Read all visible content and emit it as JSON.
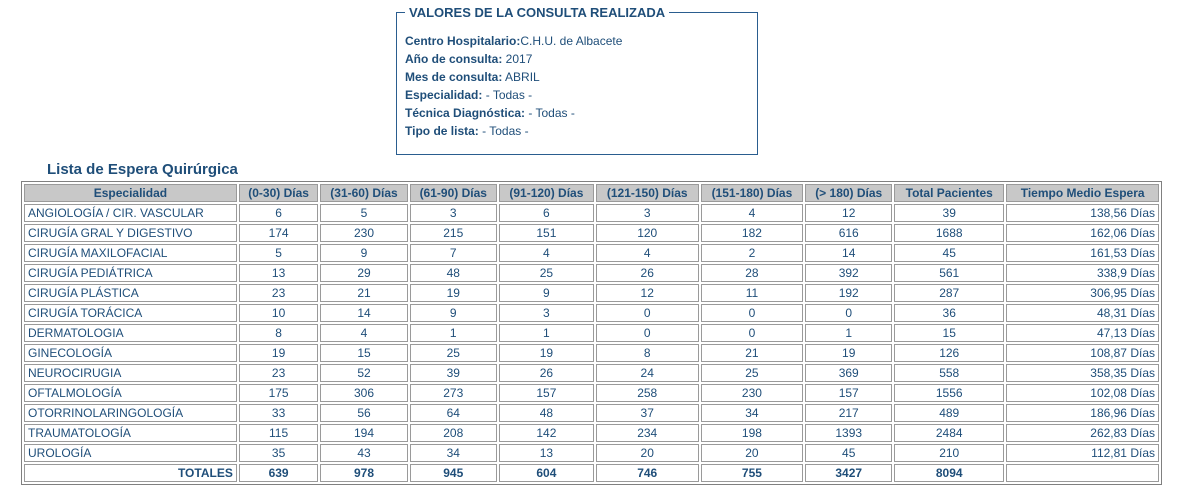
{
  "query": {
    "legend": "VALORES DE LA CONSULTA REALIZADA",
    "fields": [
      {
        "label": "Centro Hospitalario:",
        "value": "C.H.U. de Albacete"
      },
      {
        "label": "Año de consulta:",
        "value": " 2017"
      },
      {
        "label": "Mes de consulta:",
        "value": " ABRIL"
      },
      {
        "label": "Especialidad:",
        "value": " - Todas -"
      },
      {
        "label": "Técnica Diagnóstica:",
        "value": "  - Todas -"
      },
      {
        "label": "Tipo de lista:",
        "value": "  - Todas -"
      }
    ]
  },
  "section_title": "Lista de Espera Quirúrgica",
  "table": {
    "headers": [
      "Especialidad",
      "(0-30) Días",
      "(31-60) Días",
      "(61-90) Días",
      "(91-120) Días",
      "(121-150) Días",
      "(151-180) Días",
      "(> 180) Días",
      "Total Pacientes",
      "Tiempo Medio Espera"
    ],
    "rows": [
      [
        "ANGIOLOGÍA / CIR. VASCULAR",
        "6",
        "5",
        "3",
        "6",
        "3",
        "4",
        "12",
        "39",
        "138,56 Días"
      ],
      [
        "CIRUGÍA GRAL Y DIGESTIVO",
        "174",
        "230",
        "215",
        "151",
        "120",
        "182",
        "616",
        "1688",
        "162,06 Días"
      ],
      [
        "CIRUGÍA MAXILOFACIAL",
        "5",
        "9",
        "7",
        "4",
        "4",
        "2",
        "14",
        "45",
        "161,53 Días"
      ],
      [
        "CIRUGÍA PEDIÁTRICA",
        "13",
        "29",
        "48",
        "25",
        "26",
        "28",
        "392",
        "561",
        "338,9 Días"
      ],
      [
        "CIRUGÍA PLÁSTICA",
        "23",
        "21",
        "19",
        "9",
        "12",
        "11",
        "192",
        "287",
        "306,95 Días"
      ],
      [
        "CIRUGÍA TORÁCICA",
        "10",
        "14",
        "9",
        "3",
        "0",
        "0",
        "0",
        "36",
        "48,31 Días"
      ],
      [
        "DERMATOLOGIA",
        "8",
        "4",
        "1",
        "1",
        "0",
        "0",
        "1",
        "15",
        "47,13 Días"
      ],
      [
        "GINECOLOGÍA",
        "19",
        "15",
        "25",
        "19",
        "8",
        "21",
        "19",
        "126",
        "108,87 Días"
      ],
      [
        "NEUROCIRUGIA",
        "23",
        "52",
        "39",
        "26",
        "24",
        "25",
        "369",
        "558",
        "358,35 Días"
      ],
      [
        "OFTALMOLOGÍA",
        "175",
        "306",
        "273",
        "157",
        "258",
        "230",
        "157",
        "1556",
        "102,08 Días"
      ],
      [
        "OTORRINOLARINGOLOGÍA",
        "33",
        "56",
        "64",
        "48",
        "37",
        "34",
        "217",
        "489",
        "186,96 Días"
      ],
      [
        "TRAUMATOLOGÍA",
        "115",
        "194",
        "208",
        "142",
        "234",
        "198",
        "1393",
        "2484",
        "262,83 Días"
      ],
      [
        "UROLOGÍA",
        "35",
        "43",
        "34",
        "13",
        "20",
        "20",
        "45",
        "210",
        "112,81 Días"
      ]
    ],
    "totals": [
      "TOTALES",
      "639",
      "978",
      "945",
      "604",
      "746",
      "755",
      "3427",
      "8094",
      ""
    ]
  }
}
